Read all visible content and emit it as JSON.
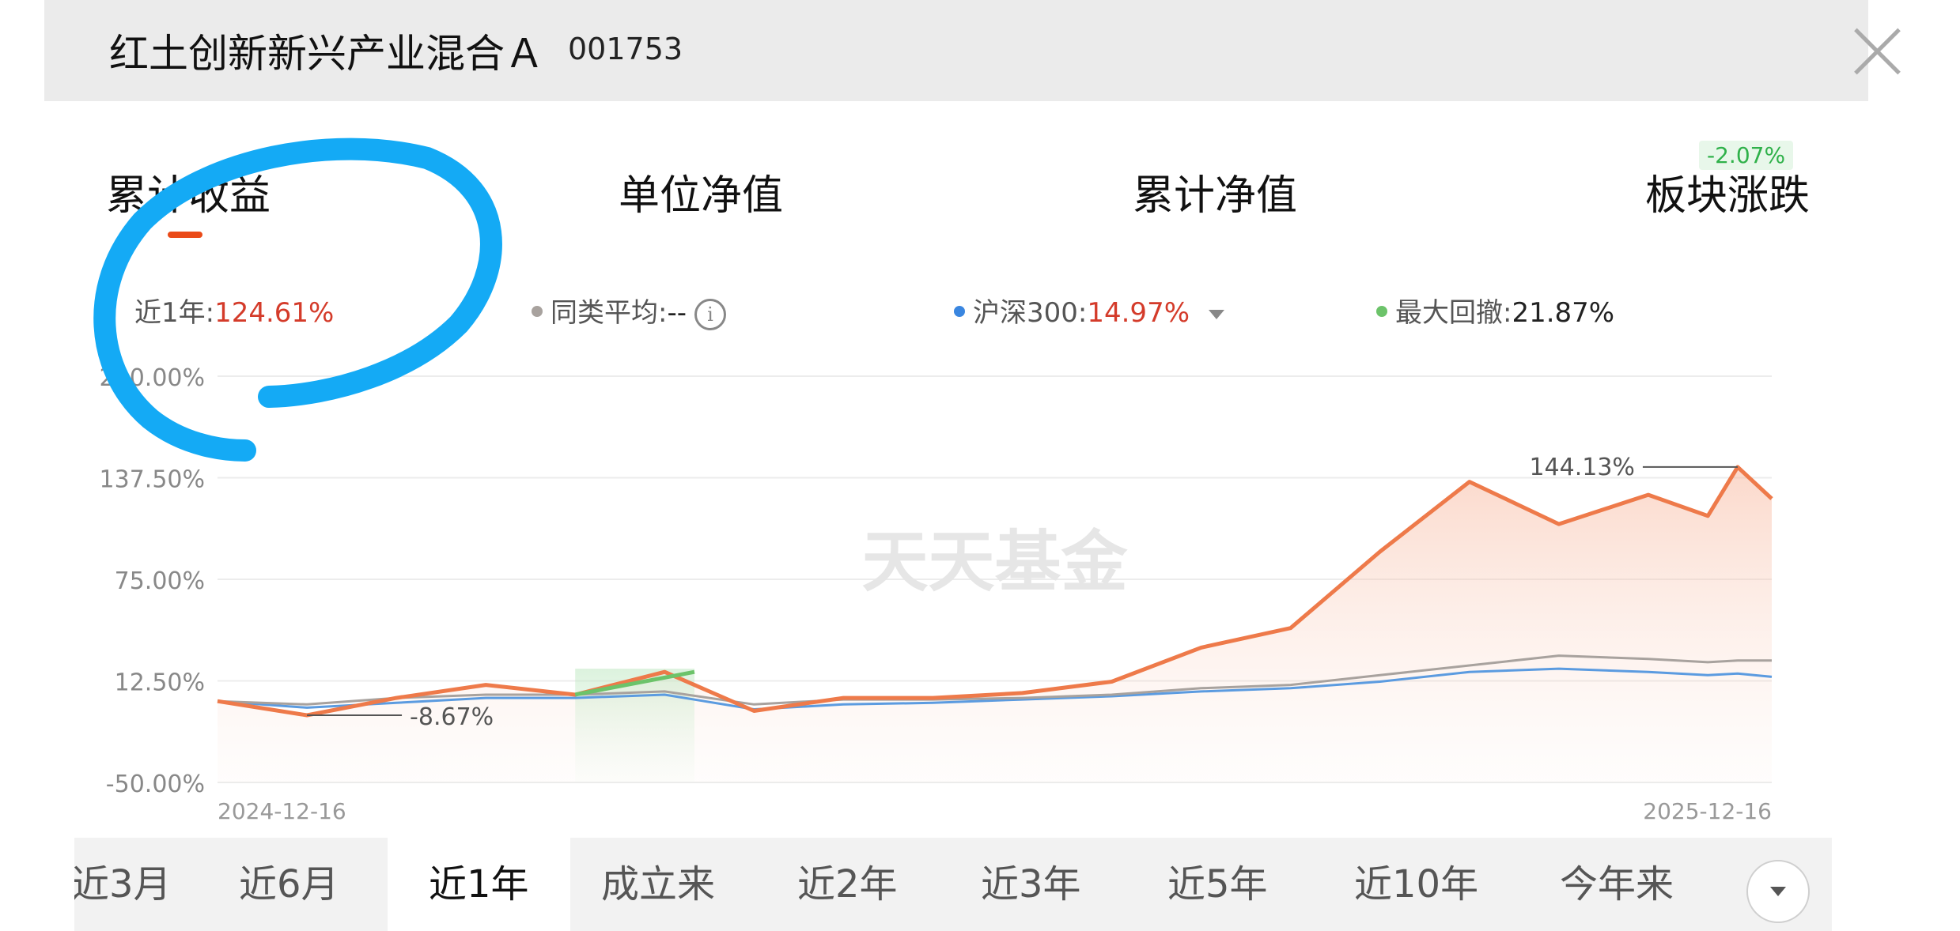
{
  "header": {
    "fund_name": "红土创新新兴产业混合Ａ",
    "fund_code": "001753"
  },
  "tabs": [
    {
      "label": "累计收益",
      "active": true
    },
    {
      "label": "单位净值",
      "active": false
    },
    {
      "label": "累计净值",
      "active": false
    },
    {
      "label": "板块涨跌",
      "active": false
    }
  ],
  "sector_change": "-2.07%",
  "legend": {
    "fund": {
      "label": "近1年:",
      "value": "124.61%"
    },
    "peer_avg": {
      "label": "同类平均:",
      "value": "--"
    },
    "csi300": {
      "label": "沪深300:",
      "value": "14.97%"
    },
    "max_drawdown": {
      "label": "最大回撤:",
      "value": "21.87%"
    }
  },
  "colors": {
    "fund": "#ee7a4a",
    "peer_avg": "#a8a29e",
    "csi300": "#5b9be0",
    "drawdown": "#6cc36a",
    "accent": "#ea4a18",
    "scribble": "#14aaf5"
  },
  "chart_data": {
    "type": "line",
    "ylim": [
      -50,
      200
    ],
    "yticks": [
      "-50.00%",
      "12.50%",
      "75.00%",
      "137.50%",
      "200.00%"
    ],
    "y_tick_values": [
      -50,
      12.5,
      75,
      137.5,
      200
    ],
    "x_start_label": "2024-12-16",
    "x_end_label": "2025-12-16",
    "watermark": "天天基金",
    "annotations": {
      "max": "144.13%",
      "min": "-8.67%"
    },
    "x": [
      "2024-12-16",
      "2025-01-06",
      "2025-01-27",
      "2025-02-17",
      "2025-03-10",
      "2025-03-31",
      "2025-04-21",
      "2025-05-12",
      "2025-06-02",
      "2025-06-23",
      "2025-07-14",
      "2025-08-04",
      "2025-08-25",
      "2025-09-15",
      "2025-10-06",
      "2025-10-27",
      "2025-11-17",
      "2025-12-01",
      "2025-12-08",
      "2025-12-16"
    ],
    "series": [
      {
        "name": "近1年",
        "values": [
          0,
          -8.67,
          2,
          10,
          4,
          18,
          -6,
          2,
          2,
          5,
          12,
          33,
          45,
          92,
          135,
          109,
          127,
          114,
          144.13,
          124.61
        ]
      },
      {
        "name": "同类平均",
        "values": [
          0,
          -2,
          2,
          4,
          4,
          6,
          -2,
          1,
          1,
          2,
          4,
          8,
          10,
          16,
          22,
          28,
          26,
          24,
          25,
          25
        ]
      },
      {
        "name": "沪深300",
        "values": [
          0,
          -4,
          -1,
          2,
          2,
          4,
          -5,
          -2,
          -1,
          1,
          3,
          6,
          8,
          12,
          18,
          20,
          18,
          16,
          17,
          14.97
        ]
      }
    ],
    "drawdown_range": [
      "2025-03-10",
      "2025-04-07"
    ]
  },
  "periods": [
    {
      "label": "近3月",
      "active": false
    },
    {
      "label": "近6月",
      "active": false
    },
    {
      "label": "近1年",
      "active": true
    },
    {
      "label": "成立来",
      "active": false
    },
    {
      "label": "近2年",
      "active": false
    },
    {
      "label": "近3年",
      "active": false
    },
    {
      "label": "近5年",
      "active": false
    },
    {
      "label": "近10年",
      "active": false
    },
    {
      "label": "今年来",
      "active": false
    }
  ]
}
